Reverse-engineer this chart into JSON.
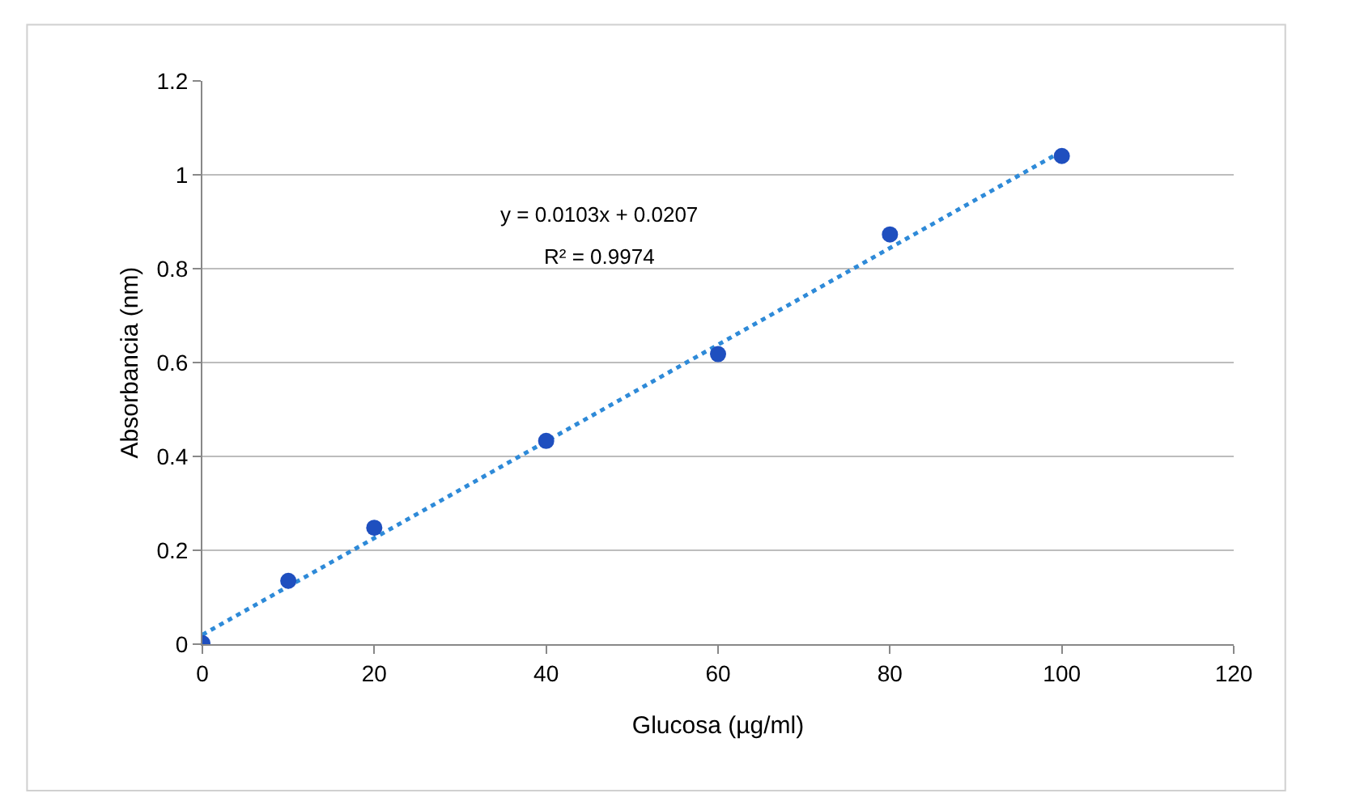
{
  "chart_data": {
    "type": "scatter",
    "xlabel": "Glucosa (µg/ml)",
    "ylabel": "Absorbancia (nm)",
    "x": [
      0,
      10,
      20,
      40,
      60,
      80,
      100
    ],
    "series": [
      {
        "color": "#1f4fbf",
        "marker": "circle",
        "values": [
          0.002,
          0.135,
          0.248,
          0.433,
          0.618,
          0.873,
          1.04
        ]
      },
      {
        "type": "line",
        "color": "#2e8ad8",
        "x": [
          0,
          100
        ],
        "values": [
          0.02,
          1.05
        ],
        "line_style": "dotted"
      }
    ],
    "annotations": [
      "y = 0.0103x + 0.0207",
      "R² = 0.9974"
    ],
    "xlim": [
      0,
      120
    ],
    "xticks": [
      0,
      20,
      40,
      60,
      80,
      100,
      120
    ],
    "ylim": [
      0,
      1.2
    ],
    "yticks": [
      0,
      0.2,
      0.4,
      0.6,
      0.8,
      1,
      1.2
    ],
    "grid": "y"
  }
}
